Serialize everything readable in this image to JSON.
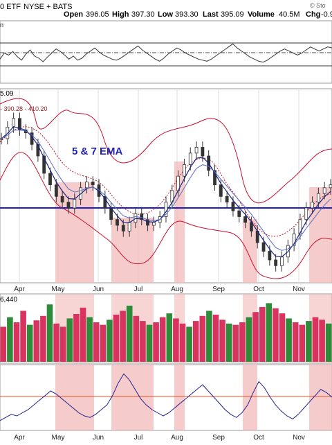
{
  "header": {
    "symbol_text": "0 ETF",
    "exchange": "NYSE + BATS",
    "open_label": "Open",
    "open_value": "396.05",
    "high_label": "High",
    "high_value": "397.30",
    "low_label": "Low",
    "low_value": "393.30",
    "last_label": "Last",
    "last_value": "395.09",
    "volume_label": "Volume",
    "volume_value": "40.5M",
    "chg_label": "Chg",
    "chg_value": "-0.9",
    "watermark": "© Sto"
  },
  "volume_left_label": "n",
  "price_panel": {
    "last_label": "5.09",
    "bb_legend": "- 390.28 - 410.20",
    "annotation": "5 & 7 EMA"
  },
  "volume_panel": {
    "label": "6,440"
  },
  "chart_data": [
    {
      "type": "line",
      "panel": "oscillator-top",
      "series": [
        {
          "values": [
            40,
            52,
            48,
            55,
            45,
            38,
            50,
            58,
            46,
            42,
            35,
            44,
            52,
            60,
            55,
            48,
            40,
            46,
            38,
            42,
            50,
            56,
            62,
            54,
            48,
            44,
            40,
            38,
            42,
            48,
            54,
            60,
            66,
            58,
            52,
            46,
            40,
            36,
            42,
            50,
            56,
            62,
            58,
            52,
            48,
            44,
            40,
            38,
            36,
            40,
            46,
            52,
            58,
            64,
            70,
            62,
            56,
            50,
            44,
            40,
            36,
            34,
            38,
            44,
            50,
            56,
            60,
            56,
            52,
            48,
            52,
            58,
            64,
            60,
            56,
            60,
            64,
            62
          ]
        }
      ],
      "reference_lines": [
        80,
        50,
        20
      ]
    },
    {
      "type": "line",
      "panel": "price",
      "x_tick_labels": [
        "Apr",
        "May",
        "Jun",
        "Jul",
        "Aug",
        "Sep",
        "Oct",
        "Nov"
      ],
      "series": [
        {
          "values": [
            408,
            412,
            415,
            411,
            410,
            406,
            402,
            396,
            392,
            388,
            386,
            384,
            387,
            391,
            393,
            392,
            388,
            384,
            380,
            378,
            376,
            379,
            382,
            380,
            378,
            379,
            381,
            386,
            390,
            395,
            399,
            403,
            405,
            402,
            397,
            392,
            388,
            386,
            383,
            381,
            379,
            376,
            372,
            369,
            366,
            364,
            367,
            371,
            375,
            380,
            384,
            386,
            389,
            391,
            392
          ]
        }
      ],
      "reference_lines": [
        390
      ]
    },
    {
      "type": "bar",
      "panel": "volume",
      "values": [
        55,
        70,
        62,
        80,
        58,
        65,
        72,
        90,
        60,
        55,
        68,
        75,
        85,
        70,
        62,
        58,
        66,
        74,
        80,
        88,
        72,
        64,
        58,
        62,
        70,
        76,
        68,
        60,
        55,
        64,
        72,
        80,
        74,
        66,
        60,
        58,
        62,
        70,
        78,
        86,
        92,
        84,
        76,
        68,
        62,
        58,
        64,
        70,
        66,
        60
      ],
      "ylim": [
        0,
        100
      ]
    },
    {
      "type": "line",
      "panel": "oscillator-bottom",
      "x_tick_labels": [
        "Apr",
        "May",
        "Jun",
        "Jul",
        "Aug",
        "Sep",
        "Oct",
        "Nov"
      ],
      "series": [
        {
          "values": [
            20,
            24,
            28,
            26,
            30,
            34,
            40,
            46,
            52,
            58,
            54,
            48,
            42,
            36,
            30,
            26,
            24,
            28,
            34,
            40,
            52,
            68,
            80,
            72,
            60,
            48,
            40,
            34,
            30,
            26,
            30,
            36,
            42,
            48,
            54,
            60,
            66,
            58,
            50,
            42,
            34,
            28,
            24,
            30,
            40,
            56,
            70,
            62,
            50,
            40,
            32,
            26,
            22,
            28,
            36,
            44,
            52,
            60,
            56,
            50
          ]
        }
      ],
      "reference_lines": [
        50
      ]
    }
  ]
}
